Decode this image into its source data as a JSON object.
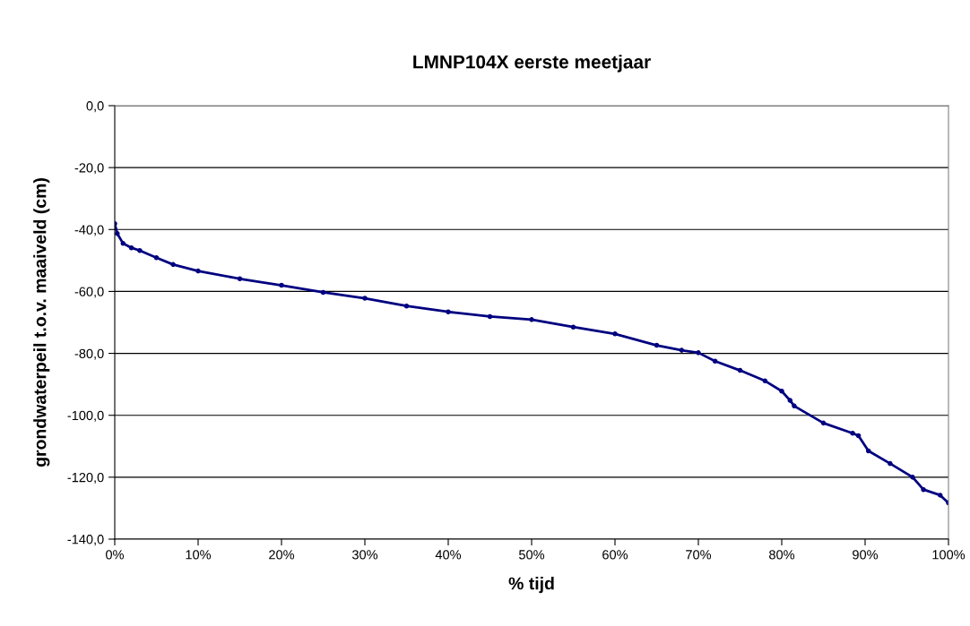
{
  "chart_data": {
    "type": "line",
    "title": "LMNP104X eerste meetjaar",
    "xlabel": "% tijd",
    "ylabel": "grondwaterpeil t.o.v. maaiveld (cm)",
    "x": [
      0,
      0.3,
      1,
      2,
      3,
      5,
      7,
      10,
      15,
      20,
      25,
      30,
      35,
      40,
      45,
      50,
      55,
      60,
      65,
      68,
      70,
      72,
      75,
      78,
      80,
      81,
      81.5,
      85,
      88.5,
      89.2,
      90.4,
      93,
      95.7,
      97,
      99,
      100
    ],
    "series": [
      {
        "color": "#000080",
        "values": [
          -38.1,
          -41.3,
          -44.5,
          -45.9,
          -46.8,
          -49.1,
          -51.3,
          -53.4,
          -55.9,
          -58.0,
          -60.3,
          -62.2,
          -64.7,
          -66.6,
          -68.1,
          -69.1,
          -71.5,
          -73.7,
          -77.4,
          -79.0,
          -79.8,
          -82.5,
          -85.5,
          -88.9,
          -92.2,
          -95.2,
          -97.0,
          -102.5,
          -105.8,
          -106.6,
          -111.5,
          -115.6,
          -120.0,
          -124.0,
          -125.8,
          -128.3
        ]
      }
    ],
    "xlim": [
      0,
      100
    ],
    "ylim": [
      -140,
      0
    ],
    "xticks": [
      {
        "value": 0,
        "label": "0%"
      },
      {
        "value": 10,
        "label": "10%"
      },
      {
        "value": 20,
        "label": "20%"
      },
      {
        "value": 30,
        "label": "30%"
      },
      {
        "value": 40,
        "label": "40%"
      },
      {
        "value": 50,
        "label": "50%"
      },
      {
        "value": 60,
        "label": "60%"
      },
      {
        "value": 70,
        "label": "70%"
      },
      {
        "value": 80,
        "label": "80%"
      },
      {
        "value": 90,
        "label": "90%"
      },
      {
        "value": 100,
        "label": "100%"
      }
    ],
    "yticks": [
      {
        "value": 0,
        "label": "0,0"
      },
      {
        "value": -20,
        "label": "-20,0"
      },
      {
        "value": -40,
        "label": "-40,0"
      },
      {
        "value": -60,
        "label": "-60,0"
      },
      {
        "value": -80,
        "label": "-80,0"
      },
      {
        "value": -100,
        "label": "-100,0"
      },
      {
        "value": -120,
        "label": "-120,0"
      },
      {
        "value": -140,
        "label": "-140,0"
      }
    ],
    "grid": "y",
    "marker": "circle",
    "line_style": "solid"
  }
}
